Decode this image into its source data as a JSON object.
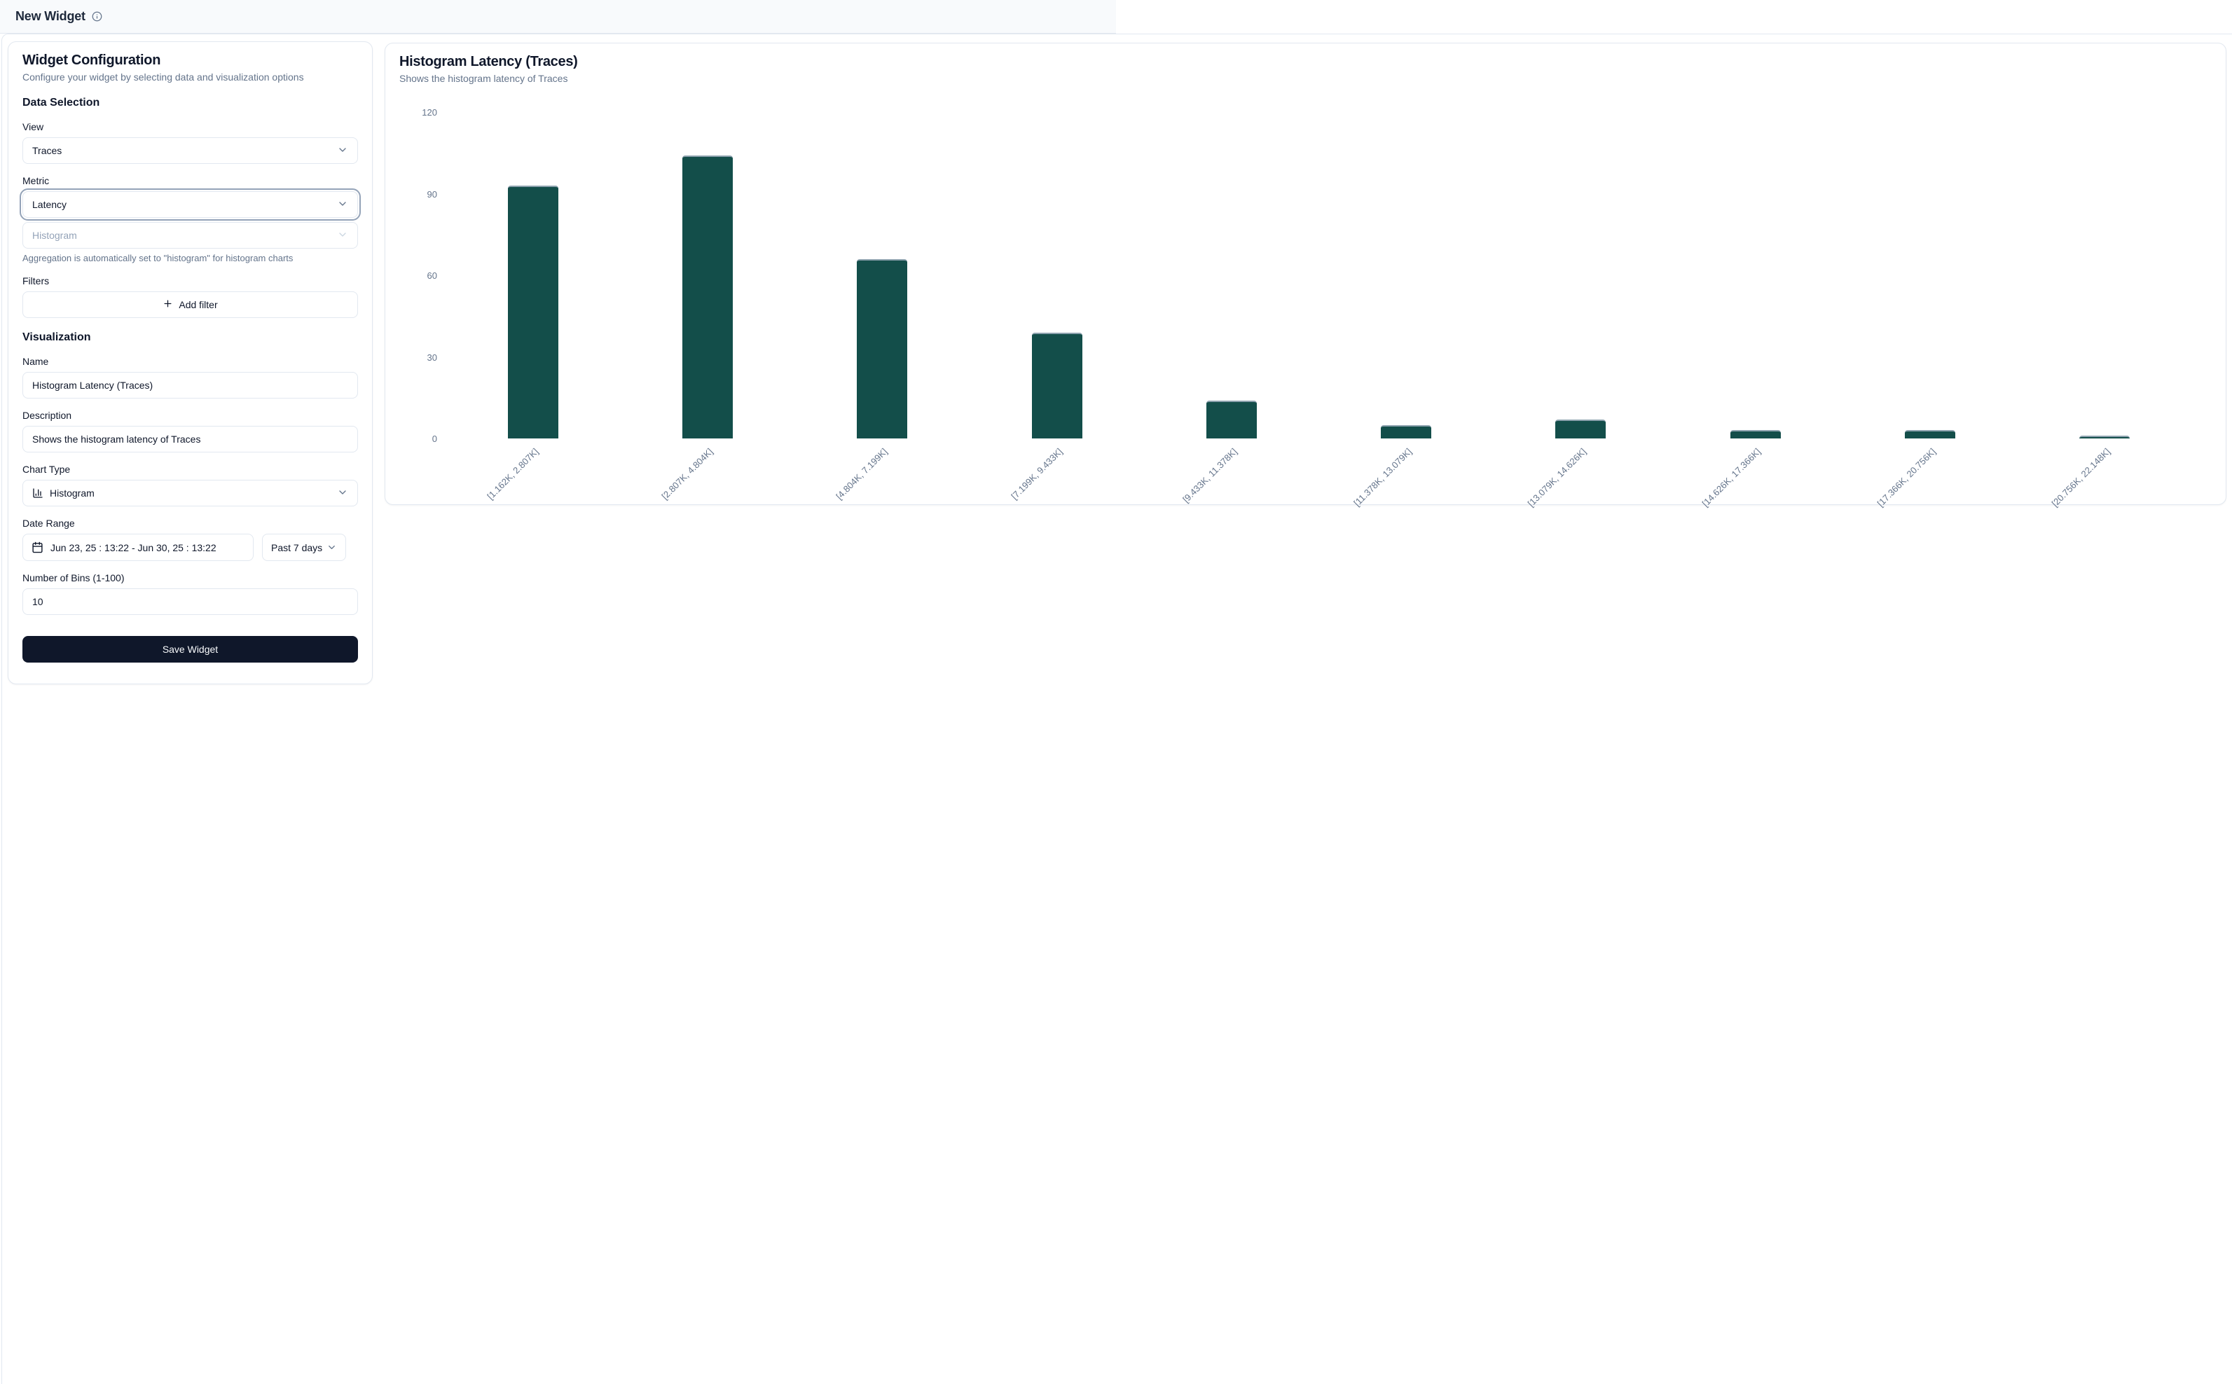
{
  "topbar": {
    "title": "New Widget"
  },
  "config_panel": {
    "title": "Widget Configuration",
    "subtitle": "Configure your widget by selecting data and visualization options",
    "data_selection": {
      "heading": "Data Selection",
      "view_label": "View",
      "view_value": "Traces",
      "metric_label": "Metric",
      "metric_value": "Latency",
      "aggregation_value": "Histogram",
      "aggregation_note": "Aggregation is automatically set to \"histogram\" for histogram charts",
      "filters_label": "Filters",
      "add_filter_label": "Add filter"
    },
    "visualization": {
      "heading": "Visualization",
      "name_label": "Name",
      "name_value": "Histogram Latency (Traces)",
      "description_label": "Description",
      "description_value": "Shows the histogram latency of Traces",
      "chart_type_label": "Chart Type",
      "chart_type_value": "Histogram",
      "date_range_label": "Date Range",
      "date_range_value": "Jun 23, 25 : 13:22 - Jun 30, 25 : 13:22",
      "date_preset_value": "Past 7 days",
      "bins_label": "Number of Bins (1-100)",
      "bins_value": "10",
      "save_label": "Save Widget"
    }
  },
  "chart_panel": {
    "title": "Histogram Latency (Traces)",
    "subtitle": "Shows the histogram latency of Traces"
  },
  "chart_data": {
    "type": "bar",
    "title": "Histogram Latency (Traces)",
    "categories": [
      "[1.162K, 2.807K]",
      "[2.807K, 4.804K]",
      "[4.804K, 7.199K]",
      "[7.199K, 9.433K]",
      "[9.433K, 11.378K]",
      "[11.378K, 13.079K]",
      "[13.079K, 14.626K]",
      "[14.626K, 17.366K]",
      "[17.366K, 20.756K]",
      "[20.756K, 22.148K]"
    ],
    "values": [
      93,
      104,
      66,
      39,
      14,
      5,
      7,
      3,
      3,
      1
    ],
    "xlabel": "",
    "ylabel": "",
    "y_ticks": [
      0,
      30,
      60,
      90,
      120
    ],
    "ylim": [
      0,
      120
    ],
    "grid": false,
    "legend": false,
    "bar_color": "#134e4a",
    "axis_text_color": "#64748b"
  },
  "colors": {
    "bar": "#134e4a",
    "save_button_bg": "#0f172a",
    "focus_ring": "#94a3b8",
    "border": "#e2e8f0",
    "muted_text": "#64748b"
  }
}
